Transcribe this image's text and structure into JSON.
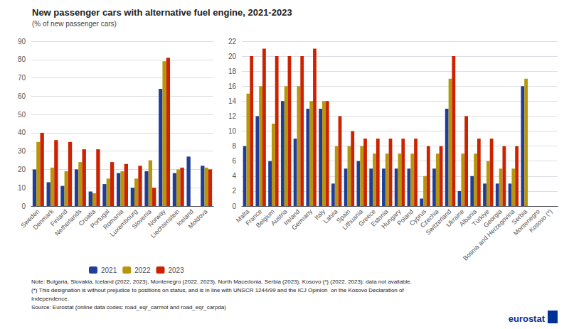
{
  "chart_data": [
    {
      "type": "bar",
      "title": "New passenger cars with alternative fuel engine, 2021-2023",
      "subtitle": "(% of new passenger cars)",
      "categories": [
        "Sweden",
        "Denmark",
        "Finland",
        "Netherlands",
        "Croatia",
        "Portugal",
        "Romania",
        "Luxembourg",
        "Slovenia",
        "Norway",
        "Liechtenstein",
        "Iceland",
        "Moldova"
      ],
      "series": [
        {
          "name": "2021",
          "color": "#1f3d99",
          "values": [
            20,
            13,
            11,
            20,
            8,
            12,
            18,
            10,
            19,
            64,
            18,
            27,
            22
          ]
        },
        {
          "name": "2022",
          "color": "#b8960c",
          "values": [
            35,
            21,
            19,
            24,
            7,
            15,
            19,
            15,
            25,
            79,
            20,
            null,
            21
          ]
        },
        {
          "name": "2023",
          "color": "#cc2200",
          "values": [
            40,
            36,
            35,
            31,
            31,
            24,
            23,
            22,
            10,
            81,
            21,
            null,
            20
          ]
        }
      ],
      "ylim": [
        0,
        90
      ],
      "yticks": [
        0,
        10,
        20,
        30,
        40,
        50,
        60,
        70,
        80,
        90
      ],
      "grid": true,
      "legend": "bottom",
      "annotations": [
        "Note: Bulgaria, Slovakia, Iceland (2022, 2023), Montenegro (2022, 2023), North Macedonia, Serbia (2023), Kosovo (*) (2022, 2023): data not available.",
        "(*) This designation is without prejudice to positions on status, and is in line with UNSCR 1244/99 and the ICJ Opinion  on the Kosovo Declaration of",
        "Independence.",
        "Source: Eurostat (online data codes: road_eqr_carmot and road_eqr_carpda)"
      ]
    },
    {
      "type": "bar",
      "categories": [
        "Malta",
        "France",
        "Belgium",
        "Austria",
        "Ireland",
        "Germany",
        "Italy",
        "Latvia",
        "Spain",
        "Lithuania",
        "Greece",
        "Estonia",
        "Hungary",
        "Poland",
        "Cyprus",
        "Czechia",
        "Switzerland",
        "Ukraine",
        "Albania",
        "Türkiye",
        "Georgia",
        "Bosnia and Herzegovina",
        "Serbia",
        "Montenegro",
        "Kosovo (*)"
      ],
      "series": [
        {
          "name": "2021",
          "color": "#1f3d99",
          "values": [
            8,
            12,
            6,
            14,
            9,
            13,
            13,
            3,
            5,
            6,
            5,
            5,
            5,
            5,
            1,
            5,
            13,
            2,
            4,
            3,
            3,
            3,
            16,
            null,
            null
          ]
        },
        {
          "name": "2022",
          "color": "#b8960c",
          "values": [
            15,
            16,
            11,
            16,
            16,
            14,
            14,
            8,
            8,
            8,
            7,
            7,
            7,
            7,
            4,
            7,
            17,
            7,
            7,
            6,
            5,
            5,
            17,
            null,
            null
          ]
        },
        {
          "name": "2023",
          "color": "#cc2200",
          "values": [
            20,
            21,
            20,
            20,
            20,
            21,
            14,
            12,
            10,
            9,
            9,
            9,
            9,
            9,
            8,
            8,
            20,
            12,
            9,
            9,
            8,
            8,
            null,
            null,
            null
          ]
        }
      ],
      "ylim": [
        0,
        22
      ],
      "yticks": [
        0,
        2,
        4,
        6,
        8,
        10,
        12,
        14,
        16,
        18,
        20,
        22
      ],
      "grid": true,
      "annotations": [
        "eurostat"
      ]
    }
  ]
}
